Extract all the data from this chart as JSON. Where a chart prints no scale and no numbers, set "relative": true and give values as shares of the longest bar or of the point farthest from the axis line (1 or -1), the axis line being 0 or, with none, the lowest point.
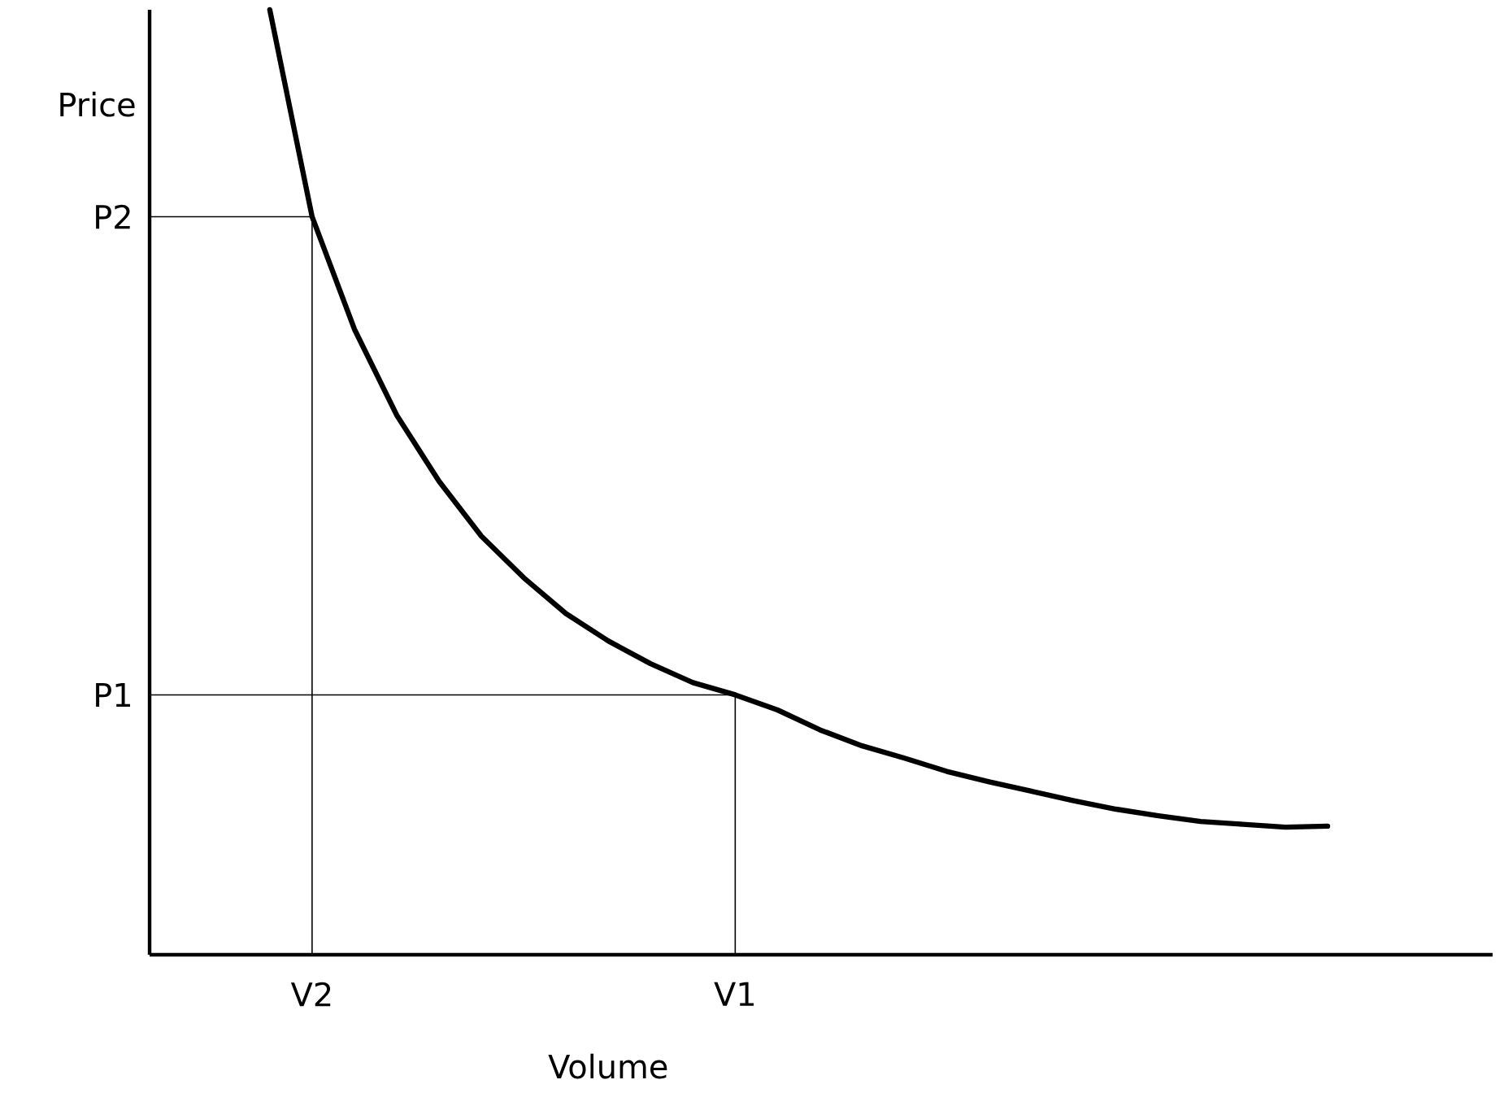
{
  "chart_data": {
    "type": "line",
    "xlabel": "Volume",
    "ylabel": "Price",
    "relative": true,
    "categories": [
      null,
      "V2",
      null,
      null,
      null,
      null,
      null,
      null,
      null,
      null,
      null,
      "V1",
      null,
      null,
      null,
      null,
      null,
      null,
      null,
      null,
      null,
      null,
      null,
      null,
      null,
      null
    ],
    "series": [
      {
        "color": "#000000",
        "values": [
          1,
          0.781,
          0.662,
          0.571,
          0.501,
          0.443,
          0.399,
          0.361,
          0.332,
          0.308,
          0.288,
          0.275,
          0.259,
          0.238,
          0.221,
          0.208,
          0.194,
          0.183,
          0.173,
          0.163,
          0.154,
          0.147,
          0.141,
          0.138,
          0.135,
          0.136
        ]
      }
    ],
    "ref_lines": [
      {
        "axis": "y",
        "value": 0.781,
        "label": "P2"
      },
      {
        "axis": "y",
        "value": 0.275,
        "label": "P1"
      },
      {
        "axis": "x",
        "value": "V2"
      },
      {
        "axis": "x",
        "value": "V1"
      }
    ],
    "marker": "none",
    "line_style": "solid"
  }
}
